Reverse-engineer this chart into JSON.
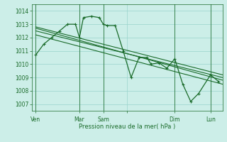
{
  "xlabel": "Pression niveau de la mer( hPa )",
  "bg_color": "#cceee8",
  "grid_color": "#99d4cc",
  "line_color": "#1a6b2a",
  "ylim": [
    1006.5,
    1014.5
  ],
  "yticks": [
    1007,
    1008,
    1009,
    1010,
    1011,
    1012,
    1013,
    1014
  ],
  "xlim": [
    0,
    24
  ],
  "xtick_positions": [
    0.5,
    6,
    9,
    12,
    18,
    22.5
  ],
  "xtick_labels": [
    "Ven",
    "Mar",
    "Sam",
    "",
    "Dim",
    "Lun"
  ],
  "vlines": [
    0.5,
    6,
    9,
    18,
    22.5
  ],
  "series_main": {
    "x": [
      0.5,
      1.5,
      2.5,
      3.5,
      4.5,
      5.5,
      6.0,
      6.5,
      7.5,
      8.5,
      9.0,
      9.5,
      10.5,
      11.5,
      12.5,
      13.5,
      14.5,
      15.0,
      16.0,
      17.0,
      18.0,
      19.0,
      20.0,
      21.0,
      22.5,
      23.5
    ],
    "y": [
      1010.7,
      1011.5,
      1012.0,
      1012.5,
      1013.0,
      1013.0,
      1012.0,
      1013.5,
      1013.6,
      1013.5,
      1013.0,
      1012.9,
      1012.9,
      1011.0,
      1009.0,
      1010.5,
      1010.5,
      1010.0,
      1010.1,
      1009.7,
      1010.4,
      1008.5,
      1007.2,
      1007.8,
      1009.2,
      1008.7
    ]
  },
  "series_trend1": {
    "x": [
      0.5,
      24
    ],
    "y": [
      1012.5,
      1009.0
    ]
  },
  "series_trend2": {
    "x": [
      0.5,
      24
    ],
    "y": [
      1012.7,
      1008.8
    ]
  },
  "series_trend3": {
    "x": [
      0.5,
      24
    ],
    "y": [
      1012.2,
      1008.5
    ]
  },
  "series_trend4": {
    "x": [
      0.5,
      24
    ],
    "y": [
      1012.8,
      1009.2
    ]
  }
}
